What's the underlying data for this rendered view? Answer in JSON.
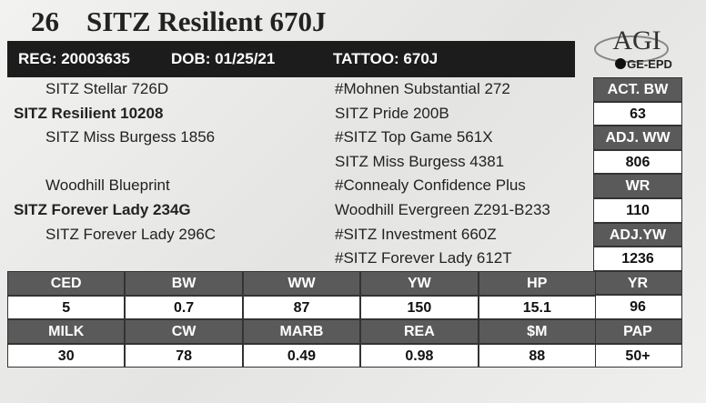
{
  "header": {
    "lot": "26",
    "name": "SITZ Resilient 670J"
  },
  "info_bar": [
    "REG: 20003635",
    "DOB: 01/25/21",
    "TATTOO: 670J"
  ],
  "logo": {
    "brand": "AGI",
    "sub": "GE-EPD"
  },
  "pedigree": {
    "left": [
      {
        "text": "SITZ Stellar 726D",
        "row": 0
      },
      {
        "text": "SITZ Resilient 10208",
        "row": 1,
        "bold": true
      },
      {
        "text": "SITZ Miss Burgess 1856",
        "row": 2
      },
      {
        "text": "Woodhill Blueprint",
        "row": 4
      },
      {
        "text": "SITZ Forever Lady 234G",
        "row": 5,
        "bold": true
      },
      {
        "text": "SITZ Forever Lady 296C",
        "row": 6
      }
    ],
    "right": [
      "#Mohnen Substantial 272",
      "SITZ Pride 200B",
      "#SITZ Top Game 561X",
      "SITZ Miss Burgess 4381",
      "#Connealy Confidence Plus",
      "Woodhill Evergreen Z291-B233",
      "#SITZ Investment 660Z",
      "#SITZ Forever Lady 612T"
    ]
  },
  "performance": [
    {
      "label": "ACT. BW",
      "value": "63"
    },
    {
      "label": "ADJ. WW",
      "value": "806"
    },
    {
      "label": "WR",
      "value": "110"
    },
    {
      "label": "ADJ.YW",
      "value": "1236"
    },
    {
      "label": "YR",
      "value": "96"
    },
    {
      "label": "PAP",
      "value": "50+"
    }
  ],
  "epd_table": {
    "rows": [
      [
        "CED",
        "BW",
        "WW",
        "YW",
        "HP"
      ],
      [
        "5",
        "0.7",
        "87",
        "150",
        "15.1"
      ],
      [
        "MILK",
        "CW",
        "MARB",
        "REA",
        "$M"
      ],
      [
        "30",
        "78",
        "0.49",
        "0.98",
        "88"
      ]
    ]
  }
}
